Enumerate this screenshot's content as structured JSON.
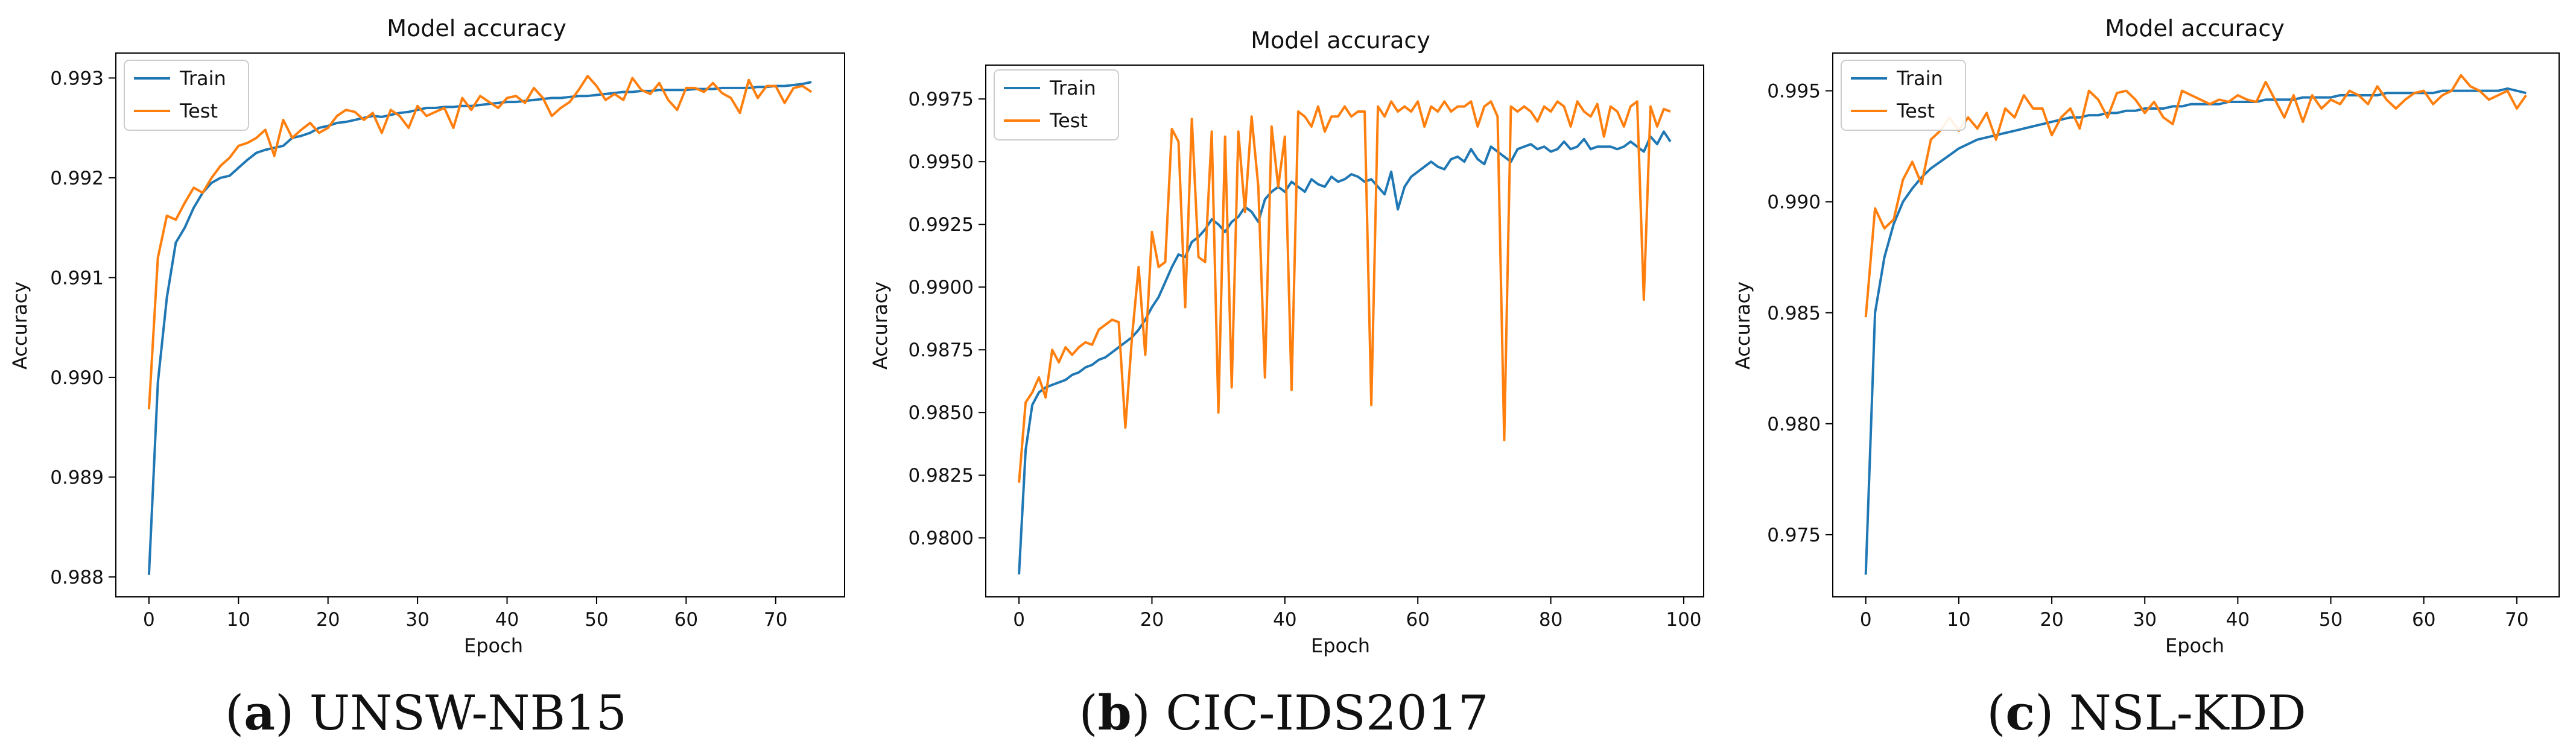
{
  "colors": {
    "train": "#1f77b4",
    "test": "#ff7f0e",
    "axis": "#000000",
    "legend_border": "#cccccc"
  },
  "chart_data": [
    {
      "type": "line",
      "title": "Model accuracy",
      "xlabel": "Epoch",
      "ylabel": "Accuracy",
      "xlim": [
        -3.7,
        77.7
      ],
      "ylim": [
        0.9878,
        0.99325
      ],
      "xticks": [
        0,
        10,
        20,
        30,
        40,
        50,
        60,
        70
      ],
      "yticks": [
        0.988,
        0.989,
        0.99,
        0.991,
        0.992,
        0.993
      ],
      "ytick_labels": [
        "0.988",
        "0.989",
        "0.990",
        "0.991",
        "0.992",
        "0.993"
      ],
      "legend": {
        "placement": "upper-left",
        "entries": [
          "Train",
          "Test"
        ]
      },
      "caption": {
        "letter": "a",
        "text": "UNSW-NB15"
      },
      "x": [
        0,
        1,
        2,
        3,
        4,
        5,
        6,
        7,
        8,
        9,
        10,
        11,
        12,
        13,
        14,
        15,
        16,
        17,
        18,
        19,
        20,
        21,
        22,
        23,
        24,
        25,
        26,
        27,
        28,
        29,
        30,
        31,
        32,
        33,
        34,
        35,
        36,
        37,
        38,
        39,
        40,
        41,
        42,
        43,
        44,
        45,
        46,
        47,
        48,
        49,
        50,
        51,
        52,
        53,
        54,
        55,
        56,
        57,
        58,
        59,
        60,
        61,
        62,
        63,
        64,
        65,
        66,
        67,
        68,
        69,
        70,
        71,
        72,
        73,
        74
      ],
      "series": [
        {
          "name": "Train",
          "values": [
            0.98802,
            0.98995,
            0.9908,
            0.99135,
            0.9915,
            0.9917,
            0.99185,
            0.99195,
            0.992,
            0.99202,
            0.9921,
            0.99218,
            0.99225,
            0.99228,
            0.9923,
            0.99232,
            0.9924,
            0.99242,
            0.99245,
            0.9925,
            0.99252,
            0.99255,
            0.99256,
            0.99258,
            0.9926,
            0.99262,
            0.99261,
            0.99263,
            0.99265,
            0.99266,
            0.99268,
            0.9927,
            0.9927,
            0.99271,
            0.99271,
            0.99272,
            0.99272,
            0.99273,
            0.99274,
            0.99275,
            0.99276,
            0.99276,
            0.99277,
            0.99278,
            0.99279,
            0.9928,
            0.9928,
            0.99281,
            0.99282,
            0.99282,
            0.99283,
            0.99284,
            0.99285,
            0.99286,
            0.99286,
            0.99287,
            0.99287,
            0.99288,
            0.99288,
            0.99288,
            0.99288,
            0.99289,
            0.99289,
            0.99289,
            0.9929,
            0.9929,
            0.9929,
            0.9929,
            0.99291,
            0.99291,
            0.99292,
            0.99292,
            0.99293,
            0.99294,
            0.99296
          ]
        },
        {
          "name": "Test",
          "values": [
            0.98968,
            0.9912,
            0.99162,
            0.99158,
            0.99175,
            0.9919,
            0.99185,
            0.992,
            0.99212,
            0.9922,
            0.99232,
            0.99235,
            0.9924,
            0.99248,
            0.99222,
            0.99258,
            0.9924,
            0.99248,
            0.99255,
            0.99245,
            0.9925,
            0.99262,
            0.99268,
            0.99266,
            0.99258,
            0.99265,
            0.99245,
            0.99268,
            0.99262,
            0.9925,
            0.99272,
            0.99262,
            0.99266,
            0.9927,
            0.9925,
            0.9928,
            0.99268,
            0.99282,
            0.99276,
            0.9927,
            0.9928,
            0.99282,
            0.99275,
            0.9929,
            0.9928,
            0.99262,
            0.9927,
            0.99276,
            0.99288,
            0.99302,
            0.99292,
            0.99278,
            0.99284,
            0.99278,
            0.993,
            0.99288,
            0.99284,
            0.99295,
            0.99278,
            0.99268,
            0.9929,
            0.9929,
            0.99286,
            0.99295,
            0.99285,
            0.9928,
            0.99265,
            0.99298,
            0.9928,
            0.99292,
            0.99292,
            0.99275,
            0.9929,
            0.99292,
            0.99286
          ]
        }
      ]
    },
    {
      "type": "line",
      "title": "Model accuracy",
      "xlabel": "Epoch",
      "ylabel": "Accuracy",
      "xlim": [
        -5.0,
        103.0
      ],
      "ylim": [
        0.97765,
        0.99885
      ],
      "xticks": [
        0,
        20,
        40,
        60,
        80,
        100
      ],
      "yticks": [
        0.98,
        0.9825,
        0.985,
        0.9875,
        0.99,
        0.9925,
        0.995,
        0.9975
      ],
      "ytick_labels": [
        "0.9800",
        "0.9825",
        "0.9850",
        "0.9875",
        "0.9900",
        "0.9925",
        "0.9950",
        "0.9975"
      ],
      "legend": {
        "placement": "upper-left",
        "entries": [
          "Train",
          "Test"
        ]
      },
      "caption": {
        "letter": "b",
        "text": "CIC-IDS2017"
      },
      "x": [
        0,
        1,
        2,
        3,
        4,
        5,
        6,
        7,
        8,
        9,
        10,
        11,
        12,
        13,
        14,
        15,
        16,
        17,
        18,
        19,
        20,
        21,
        22,
        23,
        24,
        25,
        26,
        27,
        28,
        29,
        30,
        31,
        32,
        33,
        34,
        35,
        36,
        37,
        38,
        39,
        40,
        41,
        42,
        43,
        44,
        45,
        46,
        47,
        48,
        49,
        50,
        51,
        52,
        53,
        54,
        55,
        56,
        57,
        58,
        59,
        60,
        61,
        62,
        63,
        64,
        65,
        66,
        67,
        68,
        69,
        70,
        71,
        72,
        73,
        74,
        75,
        76,
        77,
        78,
        79,
        80,
        81,
        82,
        83,
        84,
        85,
        86,
        87,
        88,
        89,
        90,
        91,
        92,
        93,
        94,
        95,
        96,
        97,
        98
      ],
      "series": [
        {
          "name": "Train",
          "values": [
            0.97855,
            0.9835,
            0.9853,
            0.9858,
            0.986,
            0.9861,
            0.9862,
            0.9863,
            0.9865,
            0.9866,
            0.9868,
            0.9869,
            0.9871,
            0.9872,
            0.9874,
            0.9876,
            0.9878,
            0.988,
            0.9883,
            0.9887,
            0.9892,
            0.9896,
            0.9902,
            0.9908,
            0.9913,
            0.9912,
            0.9918,
            0.992,
            0.9923,
            0.9927,
            0.9925,
            0.9922,
            0.9926,
            0.9928,
            0.9932,
            0.993,
            0.9926,
            0.9935,
            0.9938,
            0.994,
            0.9938,
            0.9942,
            0.994,
            0.9938,
            0.9943,
            0.9941,
            0.994,
            0.9944,
            0.9942,
            0.9943,
            0.9945,
            0.9944,
            0.9942,
            0.9943,
            0.994,
            0.9937,
            0.9946,
            0.9931,
            0.994,
            0.9944,
            0.9946,
            0.9948,
            0.995,
            0.9948,
            0.9947,
            0.9951,
            0.9952,
            0.995,
            0.9955,
            0.9951,
            0.9949,
            0.9956,
            0.9954,
            0.9952,
            0.995,
            0.9955,
            0.9956,
            0.9957,
            0.9955,
            0.9956,
            0.9954,
            0.9955,
            0.9958,
            0.9955,
            0.9956,
            0.9959,
            0.9955,
            0.9956,
            0.9956,
            0.9956,
            0.9955,
            0.9956,
            0.9958,
            0.9956,
            0.9954,
            0.996,
            0.9957,
            0.9962,
            0.9958
          ]
        },
        {
          "name": "Test",
          "values": [
            0.9822,
            0.9854,
            0.9858,
            0.9864,
            0.9856,
            0.9875,
            0.987,
            0.9876,
            0.9873,
            0.9876,
            0.9878,
            0.9877,
            0.9883,
            0.9885,
            0.9887,
            0.9886,
            0.9844,
            0.988,
            0.9908,
            0.9873,
            0.9922,
            0.9908,
            0.991,
            0.9963,
            0.9958,
            0.9892,
            0.9967,
            0.9912,
            0.991,
            0.9962,
            0.985,
            0.996,
            0.986,
            0.9962,
            0.993,
            0.9968,
            0.994,
            0.9864,
            0.9964,
            0.994,
            0.996,
            0.9859,
            0.997,
            0.9968,
            0.9964,
            0.9972,
            0.9962,
            0.9968,
            0.9968,
            0.9972,
            0.9968,
            0.997,
            0.997,
            0.9853,
            0.9972,
            0.9968,
            0.9974,
            0.997,
            0.9972,
            0.997,
            0.9974,
            0.9964,
            0.9972,
            0.997,
            0.9974,
            0.997,
            0.9972,
            0.9972,
            0.9974,
            0.9964,
            0.9972,
            0.9974,
            0.9968,
            0.9839,
            0.9972,
            0.997,
            0.9972,
            0.997,
            0.9966,
            0.9972,
            0.997,
            0.9974,
            0.9972,
            0.9964,
            0.9974,
            0.997,
            0.9968,
            0.9973,
            0.996,
            0.9972,
            0.997,
            0.9964,
            0.9972,
            0.9974,
            0.9895,
            0.9972,
            0.9964,
            0.9971,
            0.997
          ]
        }
      ]
    },
    {
      "type": "line",
      "title": "Model accuracy",
      "xlabel": "Epoch",
      "ylabel": "Accuracy",
      "xlim": [
        -3.55,
        74.55
      ],
      "ylim": [
        0.9722,
        0.9967
      ],
      "xticks": [
        0,
        10,
        20,
        30,
        40,
        50,
        60,
        70
      ],
      "yticks": [
        0.975,
        0.98,
        0.985,
        0.99,
        0.995
      ],
      "ytick_labels": [
        "0.975",
        "0.980",
        "0.985",
        "0.990",
        "0.995"
      ],
      "legend": {
        "placement": "upper-left",
        "entries": [
          "Train",
          "Test"
        ]
      },
      "caption": {
        "letter": "c",
        "text": "NSL-KDD"
      },
      "x": [
        0,
        1,
        2,
        3,
        4,
        5,
        6,
        7,
        8,
        9,
        10,
        11,
        12,
        13,
        14,
        15,
        16,
        17,
        18,
        19,
        20,
        21,
        22,
        23,
        24,
        25,
        26,
        27,
        28,
        29,
        30,
        31,
        32,
        33,
        34,
        35,
        36,
        37,
        38,
        39,
        40,
        41,
        42,
        43,
        44,
        45,
        46,
        47,
        48,
        49,
        50,
        51,
        52,
        53,
        54,
        55,
        56,
        57,
        58,
        59,
        60,
        61,
        62,
        63,
        64,
        65,
        66,
        67,
        68,
        69,
        70,
        71
      ],
      "series": [
        {
          "name": "Train",
          "values": [
            0.9732,
            0.985,
            0.9875,
            0.989,
            0.99,
            0.9906,
            0.9911,
            0.9915,
            0.9918,
            0.9921,
            0.9924,
            0.9926,
            0.9928,
            0.9929,
            0.993,
            0.9931,
            0.9932,
            0.9933,
            0.9934,
            0.9935,
            0.9936,
            0.9937,
            0.9938,
            0.9938,
            0.9939,
            0.9939,
            0.994,
            0.994,
            0.9941,
            0.9941,
            0.9942,
            0.9942,
            0.9942,
            0.9943,
            0.9943,
            0.9944,
            0.9944,
            0.9944,
            0.9944,
            0.9945,
            0.9945,
            0.9945,
            0.9945,
            0.9946,
            0.9946,
            0.9946,
            0.9946,
            0.9947,
            0.9947,
            0.9947,
            0.9947,
            0.9948,
            0.9948,
            0.9948,
            0.9948,
            0.9948,
            0.9949,
            0.9949,
            0.9949,
            0.9949,
            0.9949,
            0.9949,
            0.995,
            0.995,
            0.995,
            0.995,
            0.995,
            0.995,
            0.995,
            0.9951,
            0.995,
            0.9949
          ]
        },
        {
          "name": "Test",
          "values": [
            0.9848,
            0.9897,
            0.9888,
            0.9892,
            0.991,
            0.9918,
            0.9908,
            0.9928,
            0.9932,
            0.9938,
            0.9932,
            0.9938,
            0.9933,
            0.994,
            0.9928,
            0.9942,
            0.9938,
            0.9948,
            0.9942,
            0.9942,
            0.993,
            0.9938,
            0.9942,
            0.9933,
            0.995,
            0.9946,
            0.9938,
            0.9949,
            0.995,
            0.9946,
            0.994,
            0.9945,
            0.9938,
            0.9935,
            0.995,
            0.9948,
            0.9946,
            0.9944,
            0.9946,
            0.9945,
            0.9948,
            0.9946,
            0.9945,
            0.9954,
            0.9946,
            0.9938,
            0.9948,
            0.9936,
            0.9948,
            0.9942,
            0.9946,
            0.9944,
            0.995,
            0.9948,
            0.9944,
            0.9952,
            0.9946,
            0.9942,
            0.9946,
            0.9949,
            0.995,
            0.9944,
            0.9948,
            0.995,
            0.9957,
            0.9952,
            0.995,
            0.9946,
            0.9948,
            0.995,
            0.9942,
            0.9948
          ]
        }
      ]
    }
  ]
}
